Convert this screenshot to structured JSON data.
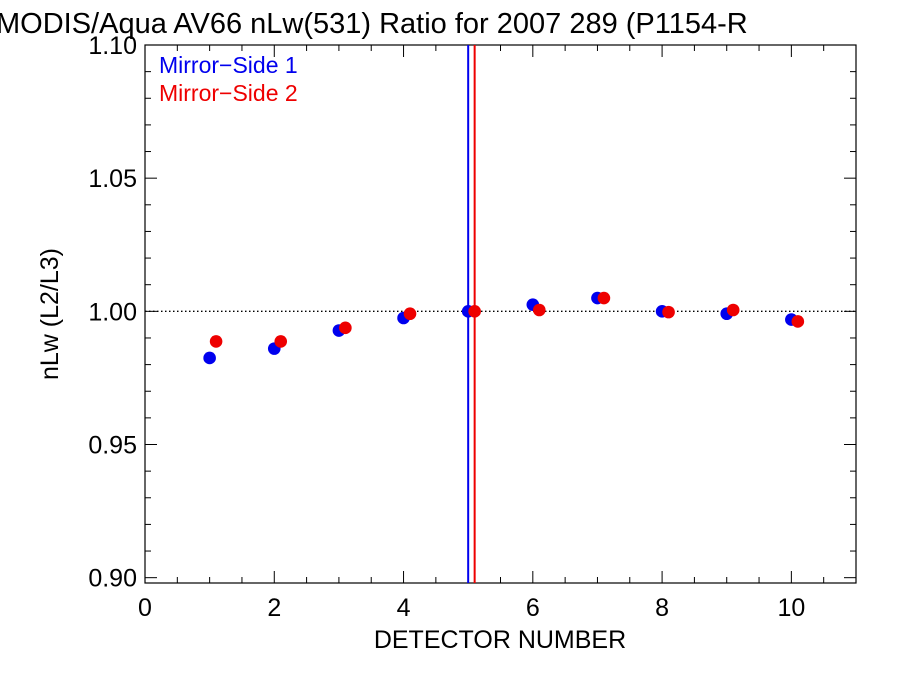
{
  "chart_data": {
    "type": "scatter",
    "title": "MODIS/Aqua AV66 nLw(531) Ratio for 2007 289 (P1154-R",
    "xlabel": "DETECTOR NUMBER",
    "ylabel": "nLw (L2/L3)",
    "xlim": [
      0,
      11
    ],
    "ylim": [
      0.898,
      1.1
    ],
    "x_ticks": [
      0,
      2,
      4,
      6,
      8,
      10
    ],
    "x_tick_labels": [
      "0",
      "2",
      "4",
      "6",
      "8",
      "10"
    ],
    "y_ticks": [
      0.9,
      0.95,
      1.0,
      1.05,
      1.1
    ],
    "y_tick_labels": [
      "0.90",
      "0.95",
      "1.00",
      "1.05",
      "1.10"
    ],
    "reference_line_y": 1.0,
    "legend_position": "top-left",
    "series": [
      {
        "name": "Mirror−Side 1",
        "color": "#0000ee",
        "x": [
          1,
          2,
          3,
          4,
          5,
          6,
          7,
          8,
          9,
          10
        ],
        "y": [
          0.9825,
          0.986,
          0.9928,
          0.9975,
          1.0,
          1.0025,
          1.005,
          1.0,
          0.9991,
          0.9969
        ],
        "vline_x": 5.0
      },
      {
        "name": "Mirror−Side 2",
        "color": "#ee0000",
        "x": [
          1.1,
          2.1,
          3.1,
          4.1,
          5.1,
          6.1,
          7.1,
          8.1,
          9.1,
          10.1
        ],
        "y": [
          0.9887,
          0.9887,
          0.9938,
          0.9991,
          1.0,
          1.0005,
          1.005,
          0.9997,
          1.0005,
          0.9962
        ],
        "vline_x": 5.1
      }
    ]
  }
}
